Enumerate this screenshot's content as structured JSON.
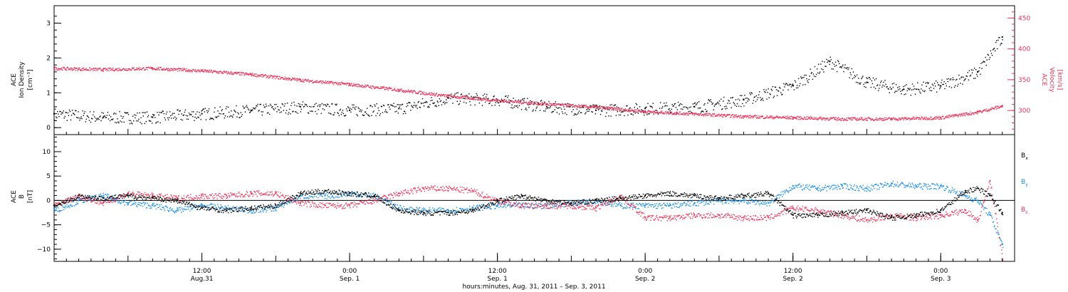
{
  "chart_data": [
    {
      "type": "scatter",
      "panel": "top",
      "left_axis_label": [
        "ACE",
        "Ion Density",
        "[cm⁻³]"
      ],
      "right_axis_label": [
        "ACE",
        "Velocity",
        "[km/s]"
      ],
      "left_ylim": [
        -0.2,
        3.5
      ],
      "left_ticks": [
        "0",
        "1",
        "2",
        "3"
      ],
      "right_ylim": [
        261,
        470
      ],
      "right_ticks": [
        "300",
        "350",
        "400",
        "450"
      ],
      "xlim": [
        0,
        78
      ],
      "series": [
        {
          "color": "#000000",
          "axis": "left",
          "x": [
            0,
            4,
            8,
            12,
            16,
            20,
            24,
            28,
            32,
            36,
            40,
            44,
            48,
            52,
            56,
            60,
            63,
            66,
            69,
            72,
            75,
            77
          ],
          "y": [
            0.4,
            0.3,
            0.3,
            0.4,
            0.5,
            0.6,
            0.5,
            0.55,
            0.85,
            0.8,
            0.6,
            0.5,
            0.55,
            0.6,
            0.8,
            1.2,
            1.9,
            1.3,
            1.1,
            1.2,
            1.6,
            2.6
          ]
        },
        {
          "color": "#e8335a",
          "axis": "right",
          "x": [
            0,
            4,
            8,
            12,
            16,
            20,
            24,
            28,
            32,
            36,
            40,
            44,
            48,
            52,
            56,
            60,
            64,
            68,
            72,
            75,
            77
          ],
          "y": [
            369,
            367,
            369,
            365,
            359,
            350,
            343,
            334,
            324,
            317,
            311,
            306,
            299,
            295,
            291,
            289,
            287,
            287,
            289,
            298,
            308
          ]
        }
      ]
    },
    {
      "type": "scatter",
      "panel": "bottom",
      "left_axis_label": [
        "ACE",
        "B",
        "[nT]"
      ],
      "ylim": [
        -12.5,
        13.5
      ],
      "ticks": [
        "−10",
        "−5",
        "0",
        "5",
        "10"
      ],
      "xlim": [
        0,
        78
      ],
      "series": [
        {
          "name": "Bx",
          "label_main": "B",
          "label_sub": "x",
          "color": "#000000",
          "x": [
            0,
            2,
            4,
            6,
            8,
            10,
            12,
            14,
            16,
            18,
            20,
            22,
            24,
            26,
            28,
            30,
            32,
            34,
            36,
            38,
            40,
            42,
            44,
            46,
            48,
            50,
            52,
            54,
            56,
            58,
            60,
            62,
            64,
            66,
            68,
            70,
            72,
            74,
            75,
            76,
            77
          ],
          "y": [
            -1,
            1,
            0.5,
            1,
            0.5,
            0,
            -1.5,
            -2,
            -1.5,
            -1,
            1.5,
            2,
            1.5,
            1,
            -2,
            -2.5,
            -2.5,
            -2,
            0,
            1,
            0,
            -0.5,
            0,
            0.5,
            1,
            1.5,
            1,
            0.5,
            1,
            1.5,
            -3,
            -3,
            -2.5,
            -2,
            -3.5,
            -3,
            -2,
            2,
            2.5,
            1,
            -2.5
          ]
        },
        {
          "name": "By",
          "label_main": "B",
          "label_sub": "y",
          "color": "#1a8fe8",
          "x": [
            0,
            2,
            4,
            6,
            8,
            10,
            12,
            14,
            16,
            18,
            20,
            22,
            24,
            26,
            28,
            30,
            32,
            34,
            36,
            38,
            40,
            42,
            44,
            46,
            48,
            50,
            52,
            54,
            56,
            58,
            60,
            62,
            64,
            66,
            68,
            70,
            72,
            74,
            75,
            76,
            77
          ],
          "y": [
            -2,
            0,
            1,
            -0.5,
            -1,
            -2,
            -1,
            -1.5,
            -2,
            -1.5,
            1,
            1,
            1.5,
            1,
            -1.5,
            -2,
            -2,
            -1.5,
            -1,
            -1,
            -1,
            -0.5,
            0,
            -1,
            -1,
            -1,
            -0.5,
            0,
            0,
            -0.5,
            3,
            2.5,
            3,
            2.5,
            3.5,
            3,
            3,
            1,
            0,
            -3,
            -9
          ]
        },
        {
          "name": "Bz",
          "label_main": "B",
          "label_sub": "z",
          "color": "#e8335a",
          "x": [
            0,
            2,
            4,
            6,
            8,
            10,
            12,
            14,
            16,
            18,
            20,
            22,
            24,
            26,
            28,
            30,
            32,
            34,
            36,
            38,
            40,
            42,
            44,
            46,
            48,
            50,
            52,
            54,
            56,
            58,
            60,
            62,
            64,
            66,
            68,
            70,
            72,
            74,
            75,
            76,
            77
          ],
          "y": [
            -1,
            1,
            -0.5,
            1.5,
            1,
            0.5,
            1,
            1,
            1.5,
            1.5,
            -0.5,
            -1,
            -1,
            0,
            1.5,
            2.5,
            2.5,
            2,
            0,
            -1,
            -1,
            -1,
            -1.5,
            1,
            -3.5,
            -3.5,
            -3,
            -3,
            -3.5,
            -3.5,
            -1.5,
            -2,
            -3,
            -4,
            -3,
            -3.5,
            -3,
            -2,
            -4,
            4,
            -12
          ]
        }
      ]
    }
  ],
  "x_axis": {
    "ticks": [
      {
        "hours": 12,
        "time": "12:00",
        "date": "Aug.31"
      },
      {
        "hours": 24,
        "time": "0:00",
        "date": "Sep. 1"
      },
      {
        "hours": 36,
        "time": "12:00",
        "date": "Sep. 1"
      },
      {
        "hours": 48,
        "time": "0:00",
        "date": "Sep. 2"
      },
      {
        "hours": 60,
        "time": "12:00",
        "date": "Sep. 2"
      },
      {
        "hours": 72,
        "time": "0:00",
        "date": "Sep. 3"
      }
    ],
    "caption": "hours:minutes, Aug. 31, 2011 – Sep.  3, 2011"
  }
}
